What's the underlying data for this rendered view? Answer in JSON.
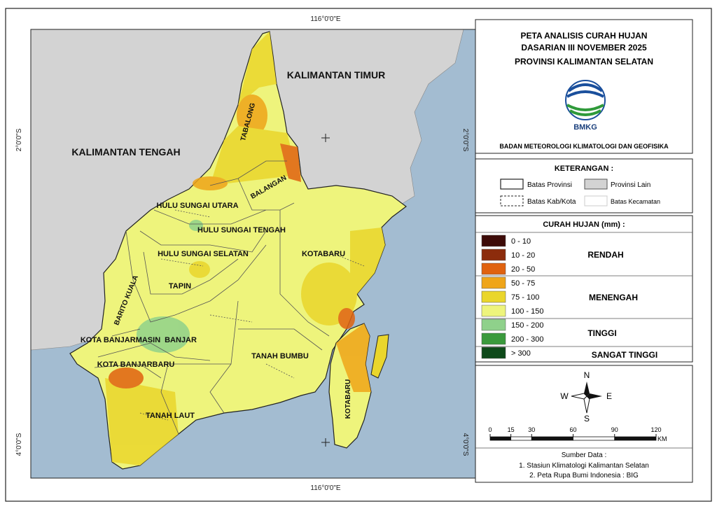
{
  "map": {
    "coords": {
      "top": "116°0'0\"E",
      "bottom": "116°0'0\"E",
      "left_upper": "2°0'0\"S",
      "right_upper": "2°0'0\"S",
      "left_lower": "4°0'0\"S",
      "right_lower": "4°0'0\"S"
    },
    "regions": [
      "KALIMANTAN TIMUR",
      "KALIMANTAN TENGAH",
      "TABALONG",
      "BALANGAN",
      "HULU SUNGAI UTARA",
      "HULU SUNGAI TENGAH",
      "HULU SUNGAI SELATAN",
      "KOTABARU",
      "TAPIN",
      "BARITO KUALA",
      "BANJAR",
      "KOTA BANJARMASIN",
      "KOTA BANJARBARU",
      "TANAH BUMBU",
      "TANAH LAUT",
      "KOTABARU"
    ]
  },
  "header": {
    "title": [
      "PETA ANALISIS CURAH HUJAN",
      "DASARIAN III NOVEMBER 2025",
      "PROVINSI KALIMANTAN SELATAN"
    ],
    "logo": "BMKG",
    "agency": "BADAN METEOROLOGI KLIMATOLOGI DAN GEOFISIKA"
  },
  "keterangan": {
    "title": "KETERANGAN :",
    "items": [
      "Batas Provinsi",
      "Provinsi Lain",
      "Batas Kab/Kota",
      "Batas Kecamatan"
    ]
  },
  "legend": {
    "title": "CURAH HUJAN (mm) :",
    "classes": [
      {
        "label": "0 - 10",
        "color": "#3d0b08"
      },
      {
        "label": "10 - 20",
        "color": "#8c2c0c"
      },
      {
        "label": "20 - 50",
        "color": "#e0620f"
      },
      {
        "label": "50 - 75",
        "color": "#efa519"
      },
      {
        "label": "75 - 100",
        "color": "#ead62c"
      },
      {
        "label": "100 - 150",
        "color": "#eef47c"
      },
      {
        "label": "150 - 200",
        "color": "#8fd18b"
      },
      {
        "label": "200 - 300",
        "color": "#3a9a3c"
      },
      {
        "label": "> 300",
        "color": "#0e4a1a"
      }
    ],
    "groups": [
      "RENDAH",
      "MENENGAH",
      "TINGGI",
      "SANGAT TINGGI"
    ]
  },
  "compass": {
    "n": "N",
    "s": "S",
    "e": "E",
    "w": "W"
  },
  "scale": {
    "ticks": [
      0,
      15,
      30,
      60,
      90,
      120
    ],
    "unit": "KM"
  },
  "source": {
    "title": "Sumber Data :",
    "lines": [
      "1. Stasiun Klimatologi Kalimantan Selatan",
      "2. Peta Rupa Bumi Indonesia : BIG"
    ]
  }
}
